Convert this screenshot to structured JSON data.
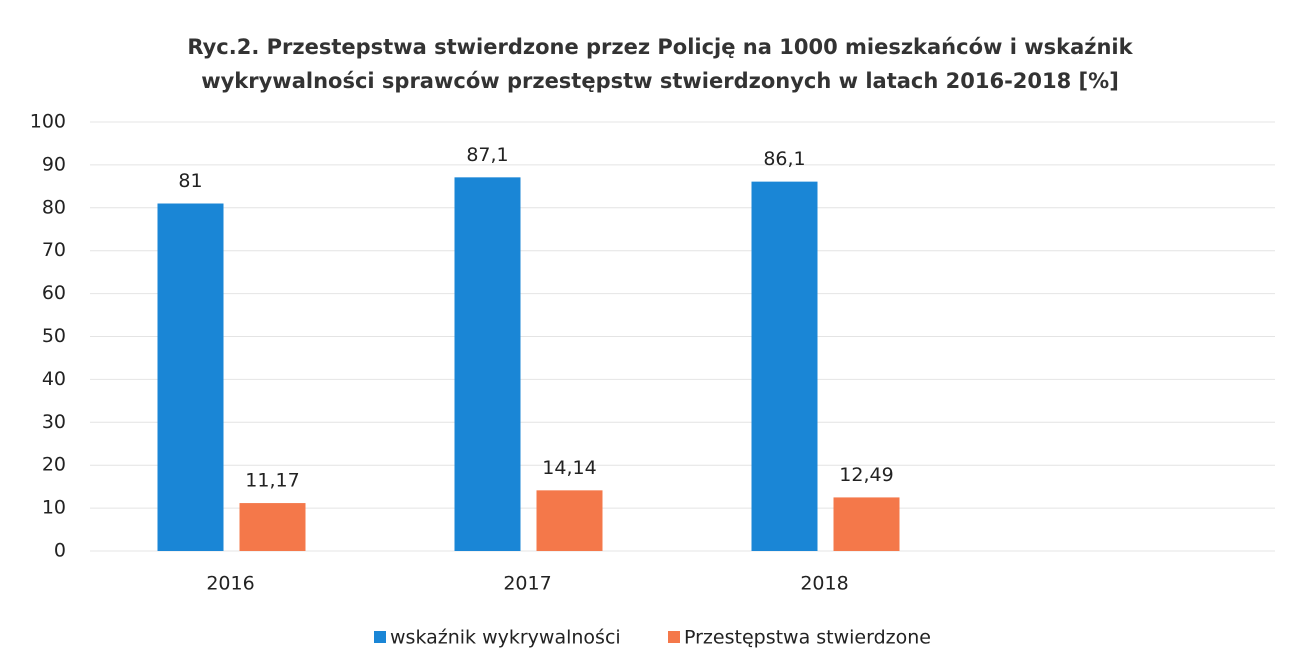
{
  "chart_data": {
    "type": "bar",
    "title": [
      "Ryc.2. Przestepstwa stwierdzone przez Policję na 1000 mieszkańców i wskaźnik",
      "wykrywalności sprawców przestępstw stwierdzonych w latach 2016-2018 [%]"
    ],
    "categories": [
      "2016",
      "2017",
      "2018"
    ],
    "series": [
      {
        "name": "wskaźnik wykrywalności",
        "color": "#1a86d6",
        "values": [
          81,
          87.1,
          86.1
        ],
        "value_labels": [
          "81",
          "87,1",
          "86,1"
        ]
      },
      {
        "name": "Przestępstwa stwierdzone",
        "color": "#f4784a",
        "values": [
          11.17,
          14.14,
          12.49
        ],
        "value_labels": [
          "11,17",
          "14,14",
          "12,49"
        ]
      }
    ],
    "ylim": [
      0,
      100
    ],
    "yticks": [
      0,
      10,
      20,
      30,
      40,
      50,
      60,
      70,
      80,
      90,
      100
    ],
    "grid": true,
    "legend": "bottom"
  }
}
